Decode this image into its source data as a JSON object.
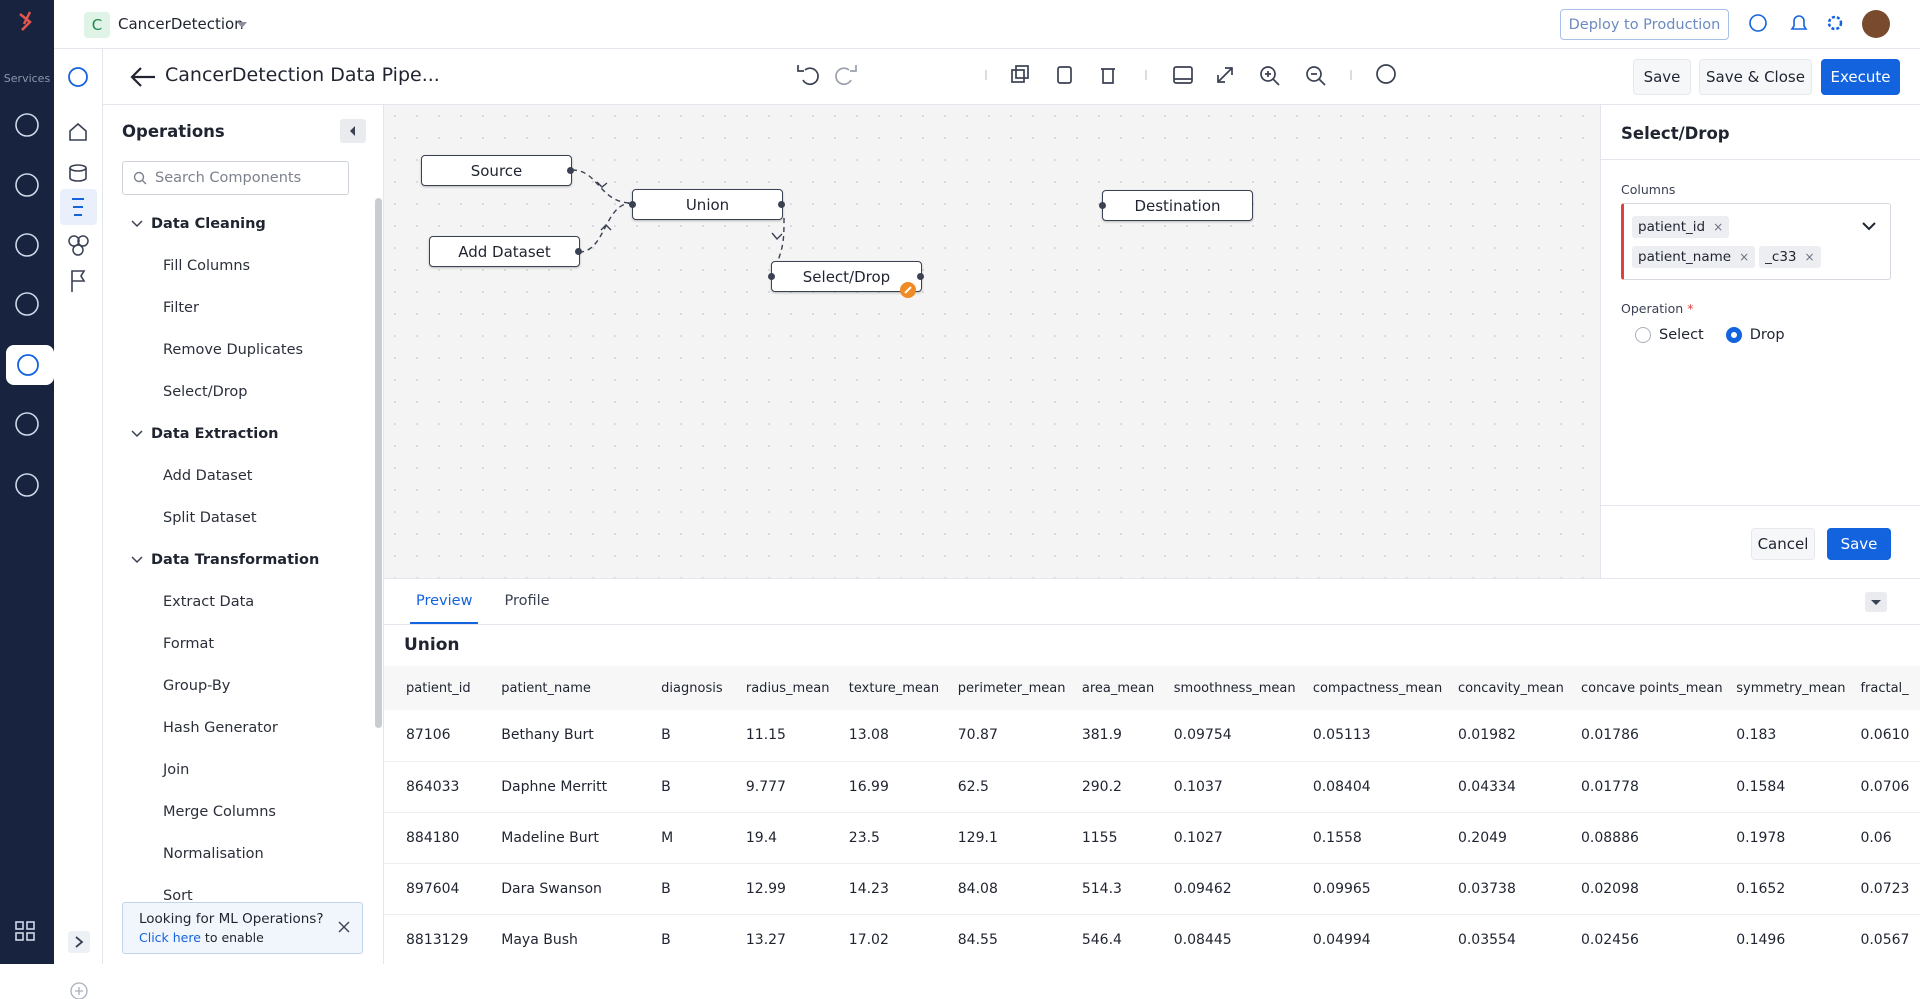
{
  "topbar": {
    "logo_letter": "C",
    "project": "CancerDetection",
    "deploy": "Deploy to Production"
  },
  "sidebar": {
    "services": "Services"
  },
  "header": {
    "title": "CancerDetection Data Pipe...",
    "save": "Save",
    "save_close": "Save & Close",
    "execute": "Execute"
  },
  "operations": {
    "title": "Operations",
    "search_placeholder": "Search Components",
    "groups": [
      {
        "name": "Data Cleaning",
        "items": [
          "Fill Columns",
          "Filter",
          "Remove Duplicates",
          "Select/Drop"
        ]
      },
      {
        "name": "Data Extraction",
        "items": [
          "Add Dataset",
          "Split Dataset"
        ]
      },
      {
        "name": "Data Transformation",
        "items": [
          "Extract Data",
          "Format",
          "Group-By",
          "Hash Generator",
          "Join",
          "Merge Columns",
          "Normalisation",
          "Sort"
        ]
      }
    ]
  },
  "canvas": {
    "nodes": [
      {
        "label": "Source"
      },
      {
        "label": "Add Dataset"
      },
      {
        "label": "Union"
      },
      {
        "label": "Select/Drop"
      },
      {
        "label": "Destination"
      }
    ]
  },
  "properties": {
    "title": "Select/Drop",
    "columns_label": "Columns",
    "tags": [
      "patient_id",
      "patient_name",
      "_c33"
    ],
    "operation_label": "Operation",
    "required": "*",
    "options": [
      "Select",
      "Drop"
    ],
    "cancel": "Cancel",
    "save": "Save"
  },
  "preview": {
    "tabs": [
      "Preview",
      "Profile"
    ],
    "title": "Union",
    "table": {
      "columns": [
        "patient_id",
        "patient_name",
        "diagnosis",
        "radius_mean",
        "texture_mean",
        "perimeter_mean",
        "area_mean",
        "smoothness_mean",
        "compactness_mean",
        "concavity_mean",
        "concave points_mean",
        "symmetry_mean",
        "fractal_"
      ],
      "rows": [
        [
          "87106",
          "Bethany Burt",
          "B",
          "11.15",
          "13.08",
          "70.87",
          "381.9",
          "0.09754",
          "0.05113",
          "0.01982",
          "0.01786",
          "0.183",
          "0.0610"
        ],
        [
          "864033",
          "Daphne Merritt",
          "B",
          "9.777",
          "16.99",
          "62.5",
          "290.2",
          "0.1037",
          "0.08404",
          "0.04334",
          "0.01778",
          "0.1584",
          "0.0706"
        ],
        [
          "884180",
          "Madeline Burt",
          "M",
          "19.4",
          "23.5",
          "129.1",
          "1155",
          "0.1027",
          "0.1558",
          "0.2049",
          "0.08886",
          "0.1978",
          "0.06"
        ],
        [
          "897604",
          "Dara Swanson",
          "B",
          "12.99",
          "14.23",
          "84.08",
          "514.3",
          "0.09462",
          "0.09965",
          "0.03738",
          "0.02098",
          "0.1652",
          "0.0723"
        ],
        [
          "8813129",
          "Maya Bush",
          "B",
          "13.27",
          "17.02",
          "84.55",
          "546.4",
          "0.08445",
          "0.04994",
          "0.03554",
          "0.02456",
          "0.1496",
          "0.0567"
        ]
      ]
    }
  },
  "banner": {
    "text": "Looking for ML Operations?",
    "link": "Click here",
    "suffix": "to enable"
  }
}
